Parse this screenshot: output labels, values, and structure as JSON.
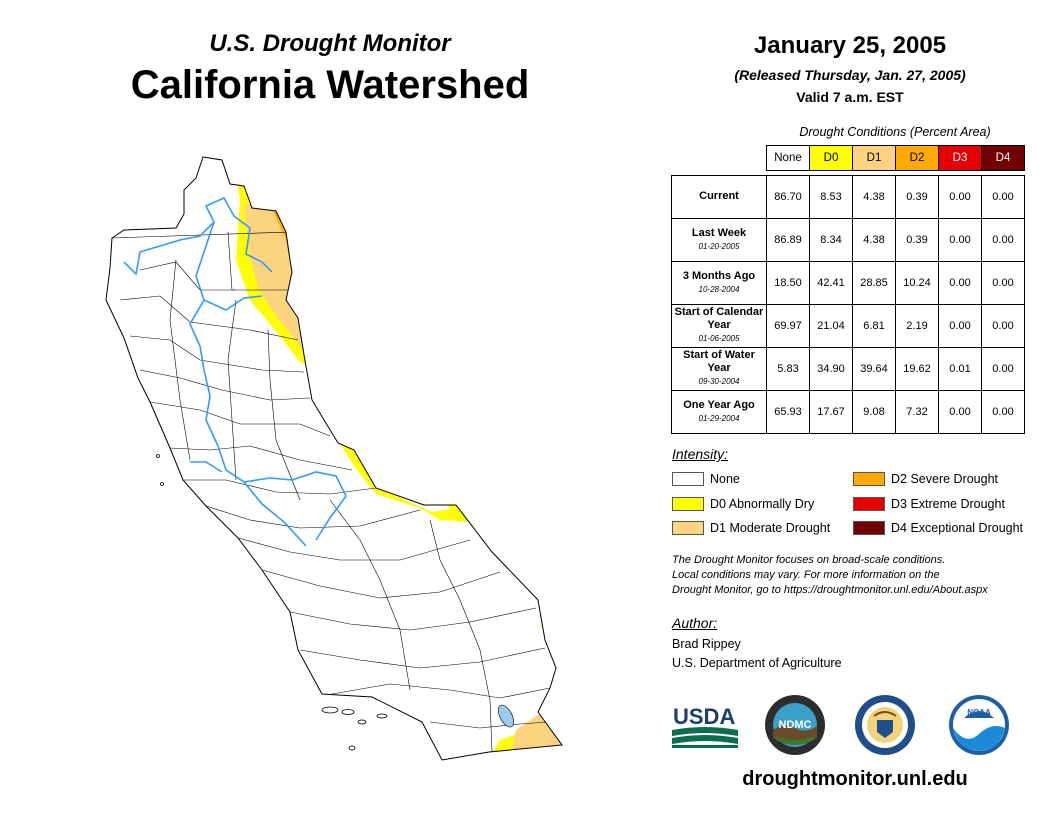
{
  "header": {
    "subtitle": "U.S. Drought Monitor",
    "title": "California Watershed",
    "date": "January 25, 2005",
    "released": "(Released Thursday, Jan. 27, 2005)",
    "valid": "Valid 7 a.m. EST"
  },
  "conditions": {
    "caption": "Drought Conditions (Percent Area)",
    "columns": [
      "None",
      "D0",
      "D1",
      "D2",
      "D3",
      "D4"
    ],
    "column_colors": [
      "#ffffff",
      "#ffff00",
      "#fcd37f",
      "#ffaa00",
      "#e60000",
      "#730000"
    ],
    "rows": [
      {
        "label": "Current",
        "date": "",
        "values": [
          "86.70",
          "8.53",
          "4.38",
          "0.39",
          "0.00",
          "0.00"
        ]
      },
      {
        "label": "Last Week",
        "date": "01-20-2005",
        "values": [
          "86.89",
          "8.34",
          "4.38",
          "0.39",
          "0.00",
          "0.00"
        ]
      },
      {
        "label": "3 Months Ago",
        "date": "10-28-2004",
        "values": [
          "18.50",
          "42.41",
          "28.85",
          "10.24",
          "0.00",
          "0.00"
        ]
      },
      {
        "label": "Start of Calendar Year",
        "date": "01-06-2005",
        "values": [
          "69.97",
          "21.04",
          "6.81",
          "2.19",
          "0.00",
          "0.00"
        ]
      },
      {
        "label": "Start of Water Year",
        "date": "09-30-2004",
        "values": [
          "5.83",
          "34.90",
          "39.64",
          "19.62",
          "0.01",
          "0.00"
        ]
      },
      {
        "label": "One Year Ago",
        "date": "01-29-2004",
        "values": [
          "65.93",
          "17.67",
          "9.08",
          "7.32",
          "0.00",
          "0.00"
        ]
      }
    ]
  },
  "legend": {
    "title": "Intensity:",
    "items": [
      {
        "label": "None",
        "color": "#ffffff"
      },
      {
        "label": "D0 Abnormally Dry",
        "color": "#ffff00"
      },
      {
        "label": "D1 Moderate Drought",
        "color": "#fcd37f"
      },
      {
        "label": "D2 Severe Drought",
        "color": "#ffaa00"
      },
      {
        "label": "D3 Extreme Drought",
        "color": "#e60000"
      },
      {
        "label": "D4 Exceptional Drought",
        "color": "#730000"
      }
    ]
  },
  "note": {
    "line1": "The Drought Monitor focuses on broad-scale conditions.",
    "line2": "Local conditions may vary. For more information on the",
    "line3": "Drought Monitor, go to https://droughtmonitor.unl.edu/About.aspx"
  },
  "author": {
    "title": "Author:",
    "name": "Brad Rippey",
    "org": "U.S. Department of Agriculture"
  },
  "logos": {
    "usda": "USDA",
    "ndmc": "NDMC",
    "noaa": "NOAA"
  },
  "site": "droughtmonitor.unl.edu",
  "colors": {
    "river": "#3399ff",
    "lake": "#99ccee",
    "border": "#000000"
  }
}
